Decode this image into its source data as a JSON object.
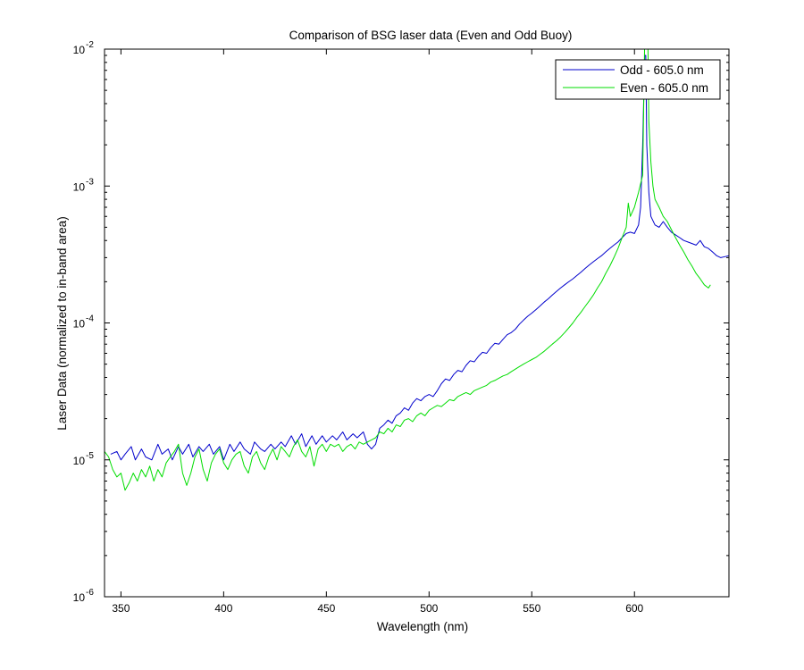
{
  "chart_data": {
    "type": "line",
    "title": "Comparison of BSG laser data (Even and Odd Buoy)",
    "xlabel": "Wavelength (nm)",
    "ylabel": "Laser Data (normalized to in-band area)",
    "xlim": [
      342,
      646
    ],
    "ylim": [
      1e-06,
      0.01
    ],
    "yscale": "log",
    "xticks": [
      350,
      400,
      450,
      500,
      550,
      600
    ],
    "xtick_labels": [
      "350",
      "400",
      "450",
      "500",
      "550",
      "600"
    ],
    "yticks": [
      1e-06,
      1e-05,
      0.0001,
      0.001,
      0.01
    ],
    "ytick_labels": [
      {
        "base": "10",
        "exp": "-6"
      },
      {
        "base": "10",
        "exp": "-5"
      },
      {
        "base": "10",
        "exp": "-4"
      },
      {
        "base": "10",
        "exp": "-3"
      },
      {
        "base": "10",
        "exp": "-2"
      }
    ],
    "grid": false,
    "legend": "top-right",
    "series": [
      {
        "name": "Odd - 605.0 nm",
        "color": "#0000cc",
        "points": [
          [
            345,
            1.1e-05
          ],
          [
            348,
            1.15e-05
          ],
          [
            350,
            1e-05
          ],
          [
            352,
            1.1e-05
          ],
          [
            355,
            1.25e-05
          ],
          [
            357,
            1e-05
          ],
          [
            360,
            1.2e-05
          ],
          [
            362,
            1.05e-05
          ],
          [
            365,
            1e-05
          ],
          [
            368,
            1.3e-05
          ],
          [
            370,
            1.1e-05
          ],
          [
            373,
            1.2e-05
          ],
          [
            375,
            1e-05
          ],
          [
            378,
            1.25e-05
          ],
          [
            380,
            1.1e-05
          ],
          [
            383,
            1.3e-05
          ],
          [
            385,
            1.05e-05
          ],
          [
            388,
            1.25e-05
          ],
          [
            390,
            1.15e-05
          ],
          [
            393,
            1.3e-05
          ],
          [
            395,
            1.1e-05
          ],
          [
            398,
            1.25e-05
          ],
          [
            400,
            1e-05
          ],
          [
            403,
            1.3e-05
          ],
          [
            405,
            1.15e-05
          ],
          [
            408,
            1.35e-05
          ],
          [
            410,
            1.2e-05
          ],
          [
            413,
            1.1e-05
          ],
          [
            415,
            1.35e-05
          ],
          [
            418,
            1.2e-05
          ],
          [
            420,
            1.15e-05
          ],
          [
            423,
            1.3e-05
          ],
          [
            425,
            1.2e-05
          ],
          [
            428,
            1.35e-05
          ],
          [
            430,
            1.25e-05
          ],
          [
            433,
            1.5e-05
          ],
          [
            435,
            1.3e-05
          ],
          [
            438,
            1.55e-05
          ],
          [
            440,
            1.25e-05
          ],
          [
            443,
            1.5e-05
          ],
          [
            445,
            1.3e-05
          ],
          [
            448,
            1.5e-05
          ],
          [
            450,
            1.35e-05
          ],
          [
            453,
            1.5e-05
          ],
          [
            455,
            1.4e-05
          ],
          [
            458,
            1.6e-05
          ],
          [
            460,
            1.4e-05
          ],
          [
            463,
            1.55e-05
          ],
          [
            465,
            1.45e-05
          ],
          [
            468,
            1.6e-05
          ],
          [
            470,
            1.3e-05
          ],
          [
            472,
            1.2e-05
          ],
          [
            474,
            1.3e-05
          ],
          [
            476,
            1.7e-05
          ],
          [
            478,
            1.8e-05
          ],
          [
            480,
            1.95e-05
          ],
          [
            482,
            1.85e-05
          ],
          [
            484,
            2.1e-05
          ],
          [
            486,
            2.2e-05
          ],
          [
            488,
            2.4e-05
          ],
          [
            490,
            2.3e-05
          ],
          [
            492,
            2.6e-05
          ],
          [
            494,
            2.8e-05
          ],
          [
            496,
            2.7e-05
          ],
          [
            498,
            2.9e-05
          ],
          [
            500,
            3e-05
          ],
          [
            502,
            2.9e-05
          ],
          [
            504,
            3.2e-05
          ],
          [
            506,
            3.6e-05
          ],
          [
            508,
            3.9e-05
          ],
          [
            510,
            3.8e-05
          ],
          [
            512,
            4.2e-05
          ],
          [
            514,
            4.5e-05
          ],
          [
            516,
            4.4e-05
          ],
          [
            518,
            4.9e-05
          ],
          [
            520,
            5.3e-05
          ],
          [
            522,
            5.2e-05
          ],
          [
            524,
            5.7e-05
          ],
          [
            526,
            6.1e-05
          ],
          [
            528,
            6e-05
          ],
          [
            530,
            6.6e-05
          ],
          [
            532,
            7.1e-05
          ],
          [
            534,
            7e-05
          ],
          [
            536,
            7.6e-05
          ],
          [
            538,
            8.2e-05
          ],
          [
            540,
            8.5e-05
          ],
          [
            542,
            9e-05
          ],
          [
            544,
            9.8e-05
          ],
          [
            546,
            0.000105
          ],
          [
            548,
            0.000112
          ],
          [
            550,
            0.000118
          ],
          [
            552,
            0.000125
          ],
          [
            554,
            0.000133
          ],
          [
            556,
            0.000142
          ],
          [
            558,
            0.00015
          ],
          [
            560,
            0.00016
          ],
          [
            562,
            0.00017
          ],
          [
            564,
            0.00018
          ],
          [
            566,
            0.00019
          ],
          [
            568,
            0.0002
          ],
          [
            570,
            0.00021
          ],
          [
            572,
            0.000222
          ],
          [
            574,
            0.000235
          ],
          [
            576,
            0.00025
          ],
          [
            578,
            0.000265
          ],
          [
            580,
            0.00028
          ],
          [
            582,
            0.000295
          ],
          [
            584,
            0.00031
          ],
          [
            586,
            0.00033
          ],
          [
            588,
            0.00035
          ],
          [
            590,
            0.00037
          ],
          [
            592,
            0.00039
          ],
          [
            594,
            0.00042
          ],
          [
            596,
            0.00045
          ],
          [
            598,
            0.00046
          ],
          [
            600,
            0.00045
          ],
          [
            602,
            0.00052
          ],
          [
            603,
            0.0007
          ],
          [
            604,
            0.002
          ],
          [
            605,
            0.009
          ],
          [
            605.5,
            0.009
          ],
          [
            606,
            0.002
          ],
          [
            607,
            0.0009
          ],
          [
            608,
            0.0006
          ],
          [
            610,
            0.00052
          ],
          [
            612,
            0.0005
          ],
          [
            614,
            0.00055
          ],
          [
            616,
            0.0005
          ],
          [
            618,
            0.00046
          ],
          [
            620,
            0.00044
          ],
          [
            622,
            0.00042
          ],
          [
            624,
            0.0004
          ],
          [
            626,
            0.00039
          ],
          [
            628,
            0.00038
          ],
          [
            630,
            0.00037
          ],
          [
            632,
            0.0004
          ],
          [
            634,
            0.00036
          ],
          [
            636,
            0.00035
          ],
          [
            638,
            0.00033
          ],
          [
            640,
            0.00031
          ],
          [
            642,
            0.0003
          ],
          [
            644,
            0.000305
          ],
          [
            646,
            0.00031
          ]
        ]
      },
      {
        "name": "Even - 605.0 nm",
        "color": "#00dd00",
        "points": [
          [
            342,
            1.15e-05
          ],
          [
            344,
            1.05e-05
          ],
          [
            346,
            8.5e-06
          ],
          [
            348,
            7.5e-06
          ],
          [
            350,
            8e-06
          ],
          [
            352,
            6e-06
          ],
          [
            354,
            6.8e-06
          ],
          [
            356,
            8e-06
          ],
          [
            358,
            7e-06
          ],
          [
            360,
            8.5e-06
          ],
          [
            362,
            7.5e-06
          ],
          [
            364,
            9e-06
          ],
          [
            366,
            7e-06
          ],
          [
            368,
            8.5e-06
          ],
          [
            370,
            7.5e-06
          ],
          [
            372,
            9.5e-06
          ],
          [
            374,
            1.05e-05
          ],
          [
            376,
            1.15e-05
          ],
          [
            378,
            1.3e-05
          ],
          [
            380,
            8e-06
          ],
          [
            382,
            6.5e-06
          ],
          [
            384,
            8e-06
          ],
          [
            386,
            1.05e-05
          ],
          [
            388,
            1.2e-05
          ],
          [
            390,
            8.5e-06
          ],
          [
            392,
            7e-06
          ],
          [
            394,
            9.5e-06
          ],
          [
            396,
            1.1e-05
          ],
          [
            398,
            1.2e-05
          ],
          [
            400,
            9.5e-06
          ],
          [
            402,
            8.5e-06
          ],
          [
            404,
            1e-05
          ],
          [
            406,
            1.1e-05
          ],
          [
            408,
            1.15e-05
          ],
          [
            410,
            9e-06
          ],
          [
            412,
            8e-06
          ],
          [
            414,
            1.05e-05
          ],
          [
            416,
            1.15e-05
          ],
          [
            418,
            9.5e-06
          ],
          [
            420,
            8.5e-06
          ],
          [
            422,
            1.05e-05
          ],
          [
            424,
            1.2e-05
          ],
          [
            426,
            1e-05
          ],
          [
            428,
            1.25e-05
          ],
          [
            430,
            1.15e-05
          ],
          [
            432,
            1.05e-05
          ],
          [
            434,
            1.25e-05
          ],
          [
            436,
            1.4e-05
          ],
          [
            438,
            1.15e-05
          ],
          [
            440,
            1.05e-05
          ],
          [
            442,
            1.25e-05
          ],
          [
            444,
            9e-06
          ],
          [
            446,
            1.2e-05
          ],
          [
            448,
            1.3e-05
          ],
          [
            450,
            1.15e-05
          ],
          [
            452,
            1.3e-05
          ],
          [
            454,
            1.25e-05
          ],
          [
            456,
            1.3e-05
          ],
          [
            458,
            1.15e-05
          ],
          [
            460,
            1.25e-05
          ],
          [
            462,
            1.3e-05
          ],
          [
            464,
            1.2e-05
          ],
          [
            466,
            1.35e-05
          ],
          [
            468,
            1.3e-05
          ],
          [
            470,
            1.35e-05
          ],
          [
            472,
            1.4e-05
          ],
          [
            474,
            1.45e-05
          ],
          [
            476,
            1.6e-05
          ],
          [
            478,
            1.55e-05
          ],
          [
            480,
            1.7e-05
          ],
          [
            482,
            1.6e-05
          ],
          [
            484,
            1.8e-05
          ],
          [
            486,
            1.75e-05
          ],
          [
            488,
            1.95e-05
          ],
          [
            490,
            2e-05
          ],
          [
            492,
            1.9e-05
          ],
          [
            494,
            2.1e-05
          ],
          [
            496,
            2.2e-05
          ],
          [
            498,
            2.1e-05
          ],
          [
            500,
            2.3e-05
          ],
          [
            502,
            2.4e-05
          ],
          [
            504,
            2.5e-05
          ],
          [
            506,
            2.45e-05
          ],
          [
            508,
            2.6e-05
          ],
          [
            510,
            2.75e-05
          ],
          [
            512,
            2.7e-05
          ],
          [
            514,
            2.9e-05
          ],
          [
            516,
            3e-05
          ],
          [
            518,
            3.1e-05
          ],
          [
            520,
            3e-05
          ],
          [
            522,
            3.2e-05
          ],
          [
            524,
            3.3e-05
          ],
          [
            526,
            3.4e-05
          ],
          [
            528,
            3.5e-05
          ],
          [
            530,
            3.7e-05
          ],
          [
            532,
            3.8e-05
          ],
          [
            534,
            3.95e-05
          ],
          [
            536,
            4.1e-05
          ],
          [
            538,
            4.2e-05
          ],
          [
            540,
            4.4e-05
          ],
          [
            542,
            4.6e-05
          ],
          [
            544,
            4.8e-05
          ],
          [
            546,
            5e-05
          ],
          [
            548,
            5.2e-05
          ],
          [
            550,
            5.4e-05
          ],
          [
            552,
            5.6e-05
          ],
          [
            554,
            5.9e-05
          ],
          [
            556,
            6.2e-05
          ],
          [
            558,
            6.6e-05
          ],
          [
            560,
            7e-05
          ],
          [
            562,
            7.4e-05
          ],
          [
            564,
            7.9e-05
          ],
          [
            566,
            8.5e-05
          ],
          [
            568,
            9.2e-05
          ],
          [
            570,
            0.0001
          ],
          [
            572,
            0.00011
          ],
          [
            574,
            0.00012
          ],
          [
            576,
            0.000132
          ],
          [
            578,
            0.000145
          ],
          [
            580,
            0.00016
          ],
          [
            582,
            0.00018
          ],
          [
            584,
            0.0002
          ],
          [
            586,
            0.00023
          ],
          [
            588,
            0.00026
          ],
          [
            590,
            0.0003
          ],
          [
            592,
            0.00035
          ],
          [
            594,
            0.00042
          ],
          [
            596,
            0.0005
          ],
          [
            597,
            0.00075
          ],
          [
            598,
            0.0006
          ],
          [
            600,
            0.0007
          ],
          [
            602,
            0.0009
          ],
          [
            604,
            0.0012
          ],
          [
            605,
            0.012
          ],
          [
            606,
            0.012
          ],
          [
            606.5,
            0.012
          ],
          [
            607,
            0.003
          ],
          [
            608,
            0.0015
          ],
          [
            609,
            0.001
          ],
          [
            610,
            0.0008
          ],
          [
            612,
            0.0007
          ],
          [
            614,
            0.0006
          ],
          [
            616,
            0.00055
          ],
          [
            618,
            0.00048
          ],
          [
            620,
            0.00042
          ],
          [
            622,
            0.00037
          ],
          [
            624,
            0.00033
          ],
          [
            626,
            0.00029
          ],
          [
            628,
            0.00026
          ],
          [
            630,
            0.00023
          ],
          [
            632,
            0.00021
          ],
          [
            634,
            0.00019
          ],
          [
            636,
            0.00018
          ],
          [
            637,
            0.00019
          ]
        ]
      }
    ]
  }
}
